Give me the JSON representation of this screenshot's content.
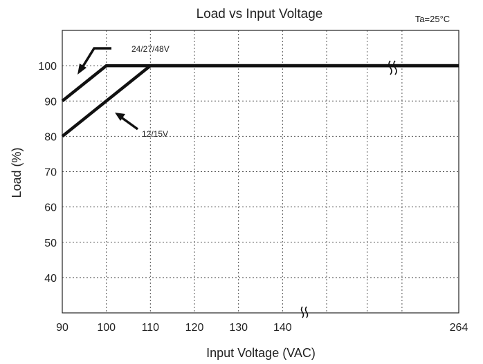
{
  "chart_data": {
    "type": "line",
    "title": "Load vs Input Voltage",
    "condition": "Ta=25°C",
    "xlabel": "Input Voltage (VAC)",
    "ylabel": "Load (%)",
    "x_ticks": [
      "90",
      "100",
      "110",
      "120",
      "130",
      "140",
      "264"
    ],
    "y_ticks": [
      "40",
      "50",
      "60",
      "70",
      "80",
      "90",
      "100"
    ],
    "xlim": [
      90,
      264
    ],
    "ylim": [
      30,
      110
    ],
    "axis_break": true,
    "grid": true,
    "legend": "none",
    "series": [
      {
        "label": "24/27/48V",
        "x": [
          90,
          100,
          264
        ],
        "y": [
          90,
          100,
          100
        ]
      },
      {
        "label": "12/15V",
        "x": [
          90,
          110,
          264
        ],
        "y": [
          80,
          100,
          100
        ]
      }
    ]
  }
}
